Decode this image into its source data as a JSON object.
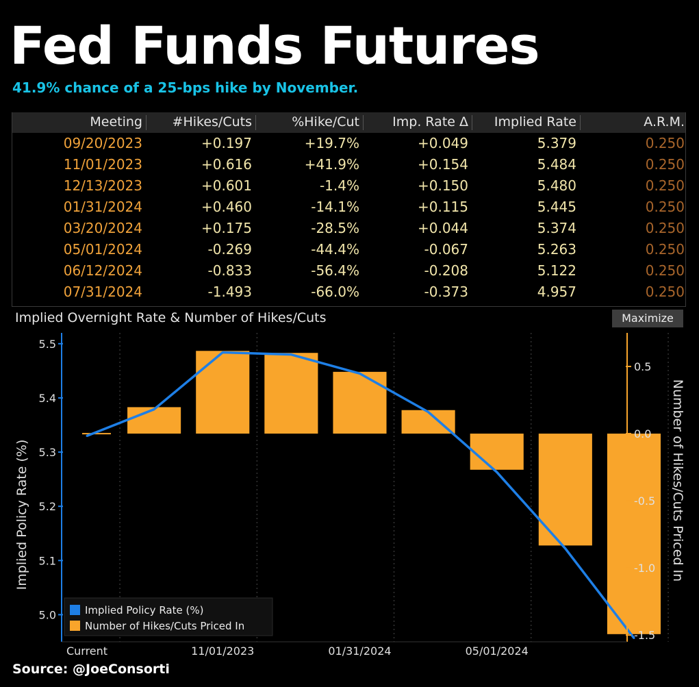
{
  "title": "Fed Funds Futures",
  "subtitle": "41.9% chance of a 25-bps hike by November.",
  "table": {
    "columns": [
      "Meeting",
      "#Hikes/Cuts",
      "%Hike/Cut",
      "Imp. Rate Δ",
      "Implied Rate",
      "A.R.M."
    ],
    "rows": [
      [
        "09/20/2023",
        "+0.197",
        "+19.7%",
        "+0.049",
        "5.379",
        "0.250"
      ],
      [
        "11/01/2023",
        "+0.616",
        "+41.9%",
        "+0.154",
        "5.484",
        "0.250"
      ],
      [
        "12/13/2023",
        "+0.601",
        "-1.4%",
        "+0.150",
        "5.480",
        "0.250"
      ],
      [
        "01/31/2024",
        "+0.460",
        "-14.1%",
        "+0.115",
        "5.445",
        "0.250"
      ],
      [
        "03/20/2024",
        "+0.175",
        "-28.5%",
        "+0.044",
        "5.374",
        "0.250"
      ],
      [
        "05/01/2024",
        "-0.269",
        "-44.4%",
        "-0.067",
        "5.263",
        "0.250"
      ],
      [
        "06/12/2024",
        "-0.833",
        "-56.4%",
        "-0.208",
        "5.122",
        "0.250"
      ],
      [
        "07/31/2024",
        "-1.493",
        "-66.0%",
        "-0.373",
        "4.957",
        "0.250"
      ]
    ]
  },
  "chart_panel": {
    "title": "Implied Overnight Rate & Number of Hikes/Cuts",
    "maximize_label": "Maximize"
  },
  "chart_data": {
    "type": "bar",
    "categories": [
      "Current",
      "09/20/2023",
      "11/01/2023",
      "12/13/2023",
      "01/31/2024",
      "03/20/2024",
      "05/01/2024",
      "06/12/2024",
      "07/31/2024"
    ],
    "x_tick_labels": [
      "Current",
      "11/01/2023",
      "01/31/2024",
      "05/01/2024"
    ],
    "series": [
      {
        "name": "Implied Policy Rate (%)",
        "type": "line",
        "axis": "left",
        "color": "#1e7fe6",
        "values": [
          5.33,
          5.379,
          5.484,
          5.48,
          5.445,
          5.374,
          5.263,
          5.122,
          4.957
        ]
      },
      {
        "name": "Number of Hikes/Cuts Priced In",
        "type": "bar",
        "axis": "right",
        "color": "#f9a52b",
        "values": [
          0.0,
          0.197,
          0.616,
          0.601,
          0.46,
          0.175,
          -0.269,
          -0.833,
          -1.493
        ]
      }
    ],
    "ylabel": "Implied Policy Rate (%)",
    "ylabel_right": "Number of Hikes/Cuts Priced In",
    "ylim": [
      4.95,
      5.52
    ],
    "ylim_right": [
      -1.55,
      0.75
    ],
    "yticks": [
      "5.0",
      "5.1",
      "5.2",
      "5.3",
      "5.4",
      "5.5"
    ],
    "yticks_right": [
      "0.5",
      "0.0",
      "-0.5",
      "-1.0",
      "-1.5"
    ],
    "grid": "vertical dotted",
    "legend_position": "bottom-left"
  },
  "source": "Source: @JoeConsorti",
  "colors": {
    "subtitle": "#19c3e6",
    "date": "#f0a23a",
    "value": "#f2e6ab",
    "arm": "#a8652b",
    "line": "#1e7fe6",
    "bar": "#f9a52b"
  }
}
